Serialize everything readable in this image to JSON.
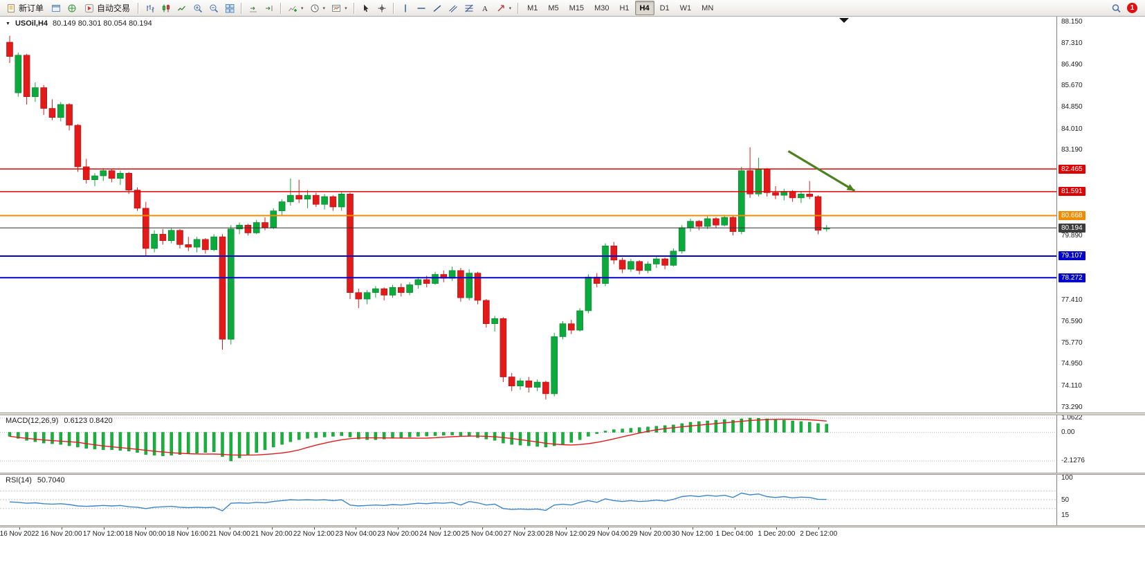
{
  "toolbar": {
    "new_order_label": "新订单",
    "autotrading_label": "自动交易",
    "timeframes": [
      "M1",
      "M5",
      "M15",
      "M30",
      "H1",
      "H4",
      "D1",
      "W1",
      "MN"
    ],
    "active_timeframe": "H4",
    "notification_count": "1"
  },
  "chart": {
    "symbol": "USOil,H4",
    "ohlc": "80.149 80.301 80.054 80.194",
    "collapse_glyph": "▼"
  },
  "macd": {
    "title": "MACD(12,26,9)",
    "values": "0.6123 0.8420",
    "axis": [
      "1.0622",
      "0.00",
      "-2.1276"
    ]
  },
  "rsi": {
    "title": "RSI(14)",
    "value": "50.7040",
    "axis": [
      "100",
      "50",
      "15"
    ]
  },
  "price_axis": [
    {
      "t": "88.150",
      "p": 88.15,
      "s": "plain"
    },
    {
      "t": "87.310",
      "p": 87.31,
      "s": "plain"
    },
    {
      "t": "86.490",
      "p": 86.49,
      "s": "plain"
    },
    {
      "t": "85.670",
      "p": 85.67,
      "s": "plain"
    },
    {
      "t": "84.850",
      "p": 84.85,
      "s": "plain"
    },
    {
      "t": "84.010",
      "p": 84.01,
      "s": "plain"
    },
    {
      "t": "83.190",
      "p": 83.19,
      "s": "plain"
    },
    {
      "t": "82.465",
      "p": 82.465,
      "s": "red"
    },
    {
      "t": "81.591",
      "p": 81.591,
      "s": "red"
    },
    {
      "t": "80.668",
      "p": 80.668,
      "s": "orange"
    },
    {
      "t": "80.194",
      "p": 80.194,
      "s": "dark"
    },
    {
      "t": "79.890",
      "p": 79.89,
      "s": "plain"
    },
    {
      "t": "79.107",
      "p": 79.107,
      "s": "blue"
    },
    {
      "t": "78.272",
      "p": 78.272,
      "s": "blue"
    },
    {
      "t": "77.410",
      "p": 77.41,
      "s": "plain"
    },
    {
      "t": "76.590",
      "p": 76.59,
      "s": "plain"
    },
    {
      "t": "75.770",
      "p": 75.77,
      "s": "plain"
    },
    {
      "t": "74.950",
      "p": 74.95,
      "s": "plain"
    },
    {
      "t": "74.110",
      "p": 74.11,
      "s": "plain"
    },
    {
      "t": "73.290",
      "p": 73.29,
      "s": "plain"
    }
  ],
  "chart_data": {
    "type": "candlestick",
    "symbol": "USOil",
    "timeframe": "H4",
    "ylim": [
      73.29,
      88.15
    ],
    "hlines": [
      {
        "price": 82.465,
        "color": "#dd0404",
        "width": 1.5
      },
      {
        "price": 81.591,
        "color": "#dd0404",
        "width": 1.5
      },
      {
        "price": 80.668,
        "color": "#f08c00",
        "width": 2
      },
      {
        "price": 80.194,
        "color": "#2f2f2f",
        "width": 1
      },
      {
        "price": 79.107,
        "color": "#0202c8",
        "width": 2
      },
      {
        "price": 78.272,
        "color": "#0202c8",
        "width": 2
      }
    ],
    "annotation_arrow": {
      "from": {
        "bar": 91.5,
        "price": 83.15
      },
      "to": {
        "bar": 99.3,
        "price": 81.62
      },
      "color": "#4c8122"
    },
    "time_labels": [
      "16 Nov 2022",
      "16 Nov 20:00",
      "17 Nov 12:00",
      "18 Nov 00:00",
      "18 Nov 16:00",
      "21 Nov 04:00",
      "21 Nov 20:00",
      "22 Nov 12:00",
      "23 Nov 04:00",
      "23 Nov 20:00",
      "24 Nov 12:00",
      "25 Nov 04:00",
      "27 Nov 23:00",
      "28 Nov 12:00",
      "29 Nov 04:00",
      "29 Nov 20:00",
      "30 Nov 12:00",
      "1 Dec 04:00",
      "1 Dec 20:00",
      "2 Dec 12:00"
    ],
    "candles_ohlc": [
      [
        87.35,
        87.6,
        86.55,
        86.8
      ],
      [
        85.4,
        86.95,
        85.25,
        86.85
      ],
      [
        86.85,
        86.9,
        84.95,
        85.25
      ],
      [
        85.25,
        85.8,
        85.05,
        85.6
      ],
      [
        85.6,
        85.7,
        84.55,
        84.8
      ],
      [
        84.8,
        85.15,
        84.35,
        84.45
      ],
      [
        84.45,
        85.05,
        84.3,
        84.95
      ],
      [
        84.95,
        85.0,
        83.95,
        84.15
      ],
      [
        84.15,
        84.2,
        82.35,
        82.55
      ],
      [
        82.55,
        82.85,
        81.9,
        82.05
      ],
      [
        82.05,
        82.3,
        81.8,
        82.2
      ],
      [
        82.2,
        82.5,
        82.0,
        82.4
      ],
      [
        82.4,
        82.45,
        81.95,
        82.1
      ],
      [
        82.1,
        82.4,
        81.85,
        82.3
      ],
      [
        82.3,
        82.35,
        81.5,
        81.65
      ],
      [
        81.65,
        81.75,
        80.85,
        80.95
      ],
      [
        80.95,
        81.2,
        79.1,
        79.4
      ],
      [
        79.4,
        80.1,
        79.25,
        79.95
      ],
      [
        79.95,
        80.15,
        79.55,
        79.7
      ],
      [
        79.7,
        80.2,
        79.6,
        80.1
      ],
      [
        80.1,
        80.15,
        79.4,
        79.55
      ],
      [
        79.55,
        79.85,
        79.3,
        79.45
      ],
      [
        79.45,
        79.85,
        79.25,
        79.75
      ],
      [
        79.75,
        79.8,
        79.2,
        79.35
      ],
      [
        79.35,
        79.95,
        79.3,
        79.85
      ],
      [
        79.85,
        79.95,
        75.5,
        75.9
      ],
      [
        75.9,
        80.3,
        75.7,
        80.15
      ],
      [
        80.15,
        80.4,
        79.95,
        80.3
      ],
      [
        80.3,
        80.35,
        79.9,
        80.0
      ],
      [
        80.0,
        80.5,
        79.95,
        80.4
      ],
      [
        80.4,
        80.6,
        80.1,
        80.2
      ],
      [
        80.2,
        80.95,
        80.15,
        80.85
      ],
      [
        80.85,
        81.3,
        80.65,
        81.2
      ],
      [
        81.2,
        82.1,
        81.05,
        81.45
      ],
      [
        81.45,
        82.05,
        81.15,
        81.3
      ],
      [
        81.3,
        81.65,
        80.95,
        81.45
      ],
      [
        81.45,
        81.55,
        81.0,
        81.1
      ],
      [
        81.1,
        81.5,
        80.9,
        81.4
      ],
      [
        81.4,
        81.45,
        80.85,
        81.0
      ],
      [
        81.0,
        81.6,
        80.85,
        81.5
      ],
      [
        81.5,
        81.55,
        77.45,
        77.7
      ],
      [
        77.7,
        77.85,
        77.1,
        77.45
      ],
      [
        77.45,
        77.8,
        77.25,
        77.7
      ],
      [
        77.7,
        77.95,
        77.5,
        77.85
      ],
      [
        77.85,
        77.9,
        77.4,
        77.6
      ],
      [
        77.6,
        78.0,
        77.5,
        77.9
      ],
      [
        77.9,
        78.05,
        77.55,
        77.7
      ],
      [
        77.7,
        78.1,
        77.6,
        78.0
      ],
      [
        78.0,
        78.3,
        77.85,
        78.2
      ],
      [
        78.2,
        78.35,
        77.9,
        78.05
      ],
      [
        78.05,
        78.5,
        78.0,
        78.4
      ],
      [
        78.4,
        78.55,
        78.1,
        78.25
      ],
      [
        78.25,
        78.7,
        78.15,
        78.55
      ],
      [
        78.55,
        78.65,
        77.35,
        77.5
      ],
      [
        77.5,
        78.6,
        77.4,
        78.45
      ],
      [
        78.45,
        78.5,
        77.25,
        77.4
      ],
      [
        77.4,
        77.45,
        76.35,
        76.5
      ],
      [
        76.5,
        76.8,
        76.2,
        76.7
      ],
      [
        76.7,
        76.75,
        74.25,
        74.45
      ],
      [
        74.45,
        74.6,
        73.9,
        74.1
      ],
      [
        74.1,
        74.4,
        73.95,
        74.3
      ],
      [
        74.3,
        74.45,
        73.85,
        74.05
      ],
      [
        74.05,
        74.35,
        73.9,
        74.25
      ],
      [
        74.25,
        74.3,
        73.58,
        73.8
      ],
      [
        73.8,
        76.15,
        73.7,
        76.0
      ],
      [
        76.0,
        76.6,
        75.9,
        76.5
      ],
      [
        76.5,
        76.65,
        76.1,
        76.25
      ],
      [
        76.25,
        77.1,
        76.2,
        77.0
      ],
      [
        77.0,
        78.4,
        76.9,
        78.3
      ],
      [
        78.3,
        78.45,
        77.9,
        78.05
      ],
      [
        78.05,
        79.6,
        77.95,
        79.5
      ],
      [
        79.5,
        79.65,
        78.8,
        78.95
      ],
      [
        78.95,
        79.05,
        78.45,
        78.6
      ],
      [
        78.6,
        79.0,
        78.5,
        78.9
      ],
      [
        78.9,
        78.95,
        78.4,
        78.55
      ],
      [
        78.55,
        78.9,
        78.45,
        78.8
      ],
      [
        78.8,
        79.1,
        78.65,
        79.0
      ],
      [
        79.0,
        79.05,
        78.6,
        78.75
      ],
      [
        78.75,
        79.4,
        78.7,
        79.3
      ],
      [
        79.3,
        80.3,
        79.2,
        80.2
      ],
      [
        80.2,
        80.55,
        80.05,
        80.45
      ],
      [
        80.45,
        80.5,
        80.1,
        80.25
      ],
      [
        80.25,
        80.65,
        80.15,
        80.55
      ],
      [
        80.55,
        80.6,
        80.2,
        80.3
      ],
      [
        80.3,
        80.7,
        80.25,
        80.6
      ],
      [
        80.6,
        80.65,
        79.9,
        80.05
      ],
      [
        80.05,
        82.55,
        79.95,
        82.4
      ],
      [
        82.4,
        83.3,
        81.35,
        81.5
      ],
      [
        81.5,
        82.9,
        81.4,
        82.45
      ],
      [
        82.45,
        82.5,
        81.4,
        81.55
      ],
      [
        81.55,
        81.8,
        81.3,
        81.45
      ],
      [
        81.45,
        81.7,
        81.25,
        81.6
      ],
      [
        81.6,
        81.65,
        81.2,
        81.35
      ],
      [
        81.35,
        81.6,
        81.15,
        81.5
      ],
      [
        81.5,
        82.0,
        81.3,
        81.4
      ],
      [
        81.4,
        81.45,
        79.95,
        80.1
      ],
      [
        80.149,
        80.301,
        80.054,
        80.194
      ]
    ],
    "indicators": {
      "macd": {
        "params": "12,26,9",
        "macd_last": 0.6123,
        "signal_last": 0.842,
        "range": [
          -2.1276,
          1.0622
        ],
        "histogram": [
          -0.3,
          -0.45,
          -0.6,
          -0.7,
          -0.8,
          -0.85,
          -0.9,
          -1.0,
          -1.1,
          -1.2,
          -1.25,
          -1.3,
          -1.3,
          -1.35,
          -1.4,
          -1.5,
          -1.65,
          -1.7,
          -1.75,
          -1.7,
          -1.65,
          -1.6,
          -1.55,
          -1.5,
          -1.45,
          -1.8,
          -2.13,
          -1.9,
          -1.7,
          -1.5,
          -1.3,
          -1.1,
          -0.9,
          -0.7,
          -0.55,
          -0.45,
          -0.4,
          -0.35,
          -0.3,
          -0.25,
          -0.35,
          -0.5,
          -0.55,
          -0.55,
          -0.5,
          -0.45,
          -0.4,
          -0.35,
          -0.3,
          -0.28,
          -0.25,
          -0.22,
          -0.2,
          -0.25,
          -0.3,
          -0.4,
          -0.5,
          -0.6,
          -0.8,
          -0.9,
          -0.95,
          -1.0,
          -1.05,
          -1.1,
          -1.0,
          -0.9,
          -0.75,
          -0.55,
          -0.3,
          -0.1,
          0.1,
          0.2,
          0.25,
          0.3,
          0.35,
          0.4,
          0.45,
          0.5,
          0.55,
          0.65,
          0.75,
          0.8,
          0.85,
          0.9,
          0.95,
          0.9,
          1.0,
          1.0622,
          1.05,
          1.0,
          0.95,
          0.9,
          0.85,
          0.8,
          0.75,
          0.65,
          0.6123
        ]
      },
      "rsi": {
        "params": "14",
        "last": 50.704,
        "values": [
          45,
          44,
          42,
          43,
          41,
          40,
          41,
          39,
          36,
          35,
          36,
          37,
          36,
          37,
          34,
          33,
          30,
          33,
          34,
          35,
          33,
          32,
          33,
          32,
          33,
          25,
          42,
          43,
          42,
          44,
          43,
          46,
          48,
          50,
          49,
          50,
          49,
          50,
          48,
          50,
          38,
          36,
          37,
          38,
          37,
          39,
          38,
          40,
          42,
          41,
          43,
          42,
          44,
          38,
          46,
          43,
          38,
          40,
          30,
          28,
          29,
          28,
          29,
          26,
          38,
          40,
          38,
          44,
          48,
          44,
          52,
          48,
          46,
          48,
          46,
          47,
          49,
          47,
          51,
          57,
          59,
          57,
          60,
          58,
          60,
          55,
          65,
          61,
          63,
          57,
          55,
          57,
          54,
          56,
          55,
          51,
          50.7
        ]
      }
    }
  }
}
